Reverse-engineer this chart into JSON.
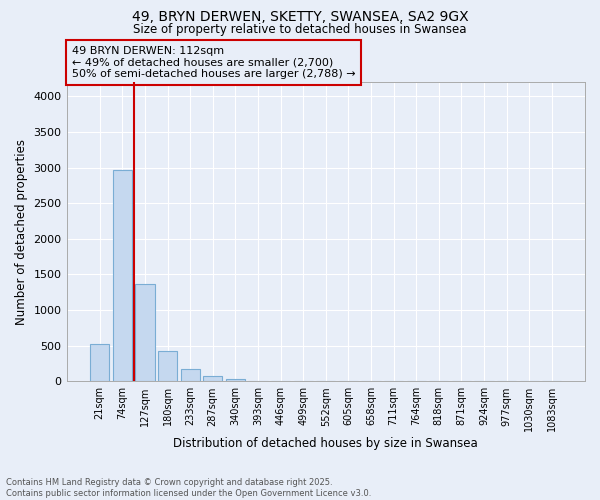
{
  "title_line1": "49, BRYN DERWEN, SKETTY, SWANSEA, SA2 9GX",
  "title_line2": "Size of property relative to detached houses in Swansea",
  "xlabel": "Distribution of detached houses by size in Swansea",
  "ylabel": "Number of detached properties",
  "categories": [
    "21sqm",
    "74sqm",
    "127sqm",
    "180sqm",
    "233sqm",
    "287sqm",
    "340sqm",
    "393sqm",
    "446sqm",
    "499sqm",
    "552sqm",
    "605sqm",
    "658sqm",
    "711sqm",
    "764sqm",
    "818sqm",
    "871sqm",
    "924sqm",
    "977sqm",
    "1030sqm",
    "1083sqm"
  ],
  "values": [
    520,
    2970,
    1370,
    430,
    175,
    80,
    30,
    5,
    2,
    0,
    0,
    0,
    0,
    0,
    0,
    0,
    0,
    0,
    0,
    0,
    0
  ],
  "bar_color": "#c5d8ef",
  "bar_edgecolor": "#7aadd4",
  "background_color": "#e8eef8",
  "grid_color": "#ffffff",
  "vline_color": "#cc0000",
  "annotation_text": "49 BRYN DERWEN: 112sqm\n← 49% of detached houses are smaller (2,700)\n50% of semi-detached houses are larger (2,788) →",
  "annotation_box_color": "#cc0000",
  "ylim": [
    0,
    4200
  ],
  "yticks": [
    0,
    500,
    1000,
    1500,
    2000,
    2500,
    3000,
    3500,
    4000
  ],
  "footer_line1": "Contains HM Land Registry data © Crown copyright and database right 2025.",
  "footer_line2": "Contains public sector information licensed under the Open Government Licence v3.0."
}
